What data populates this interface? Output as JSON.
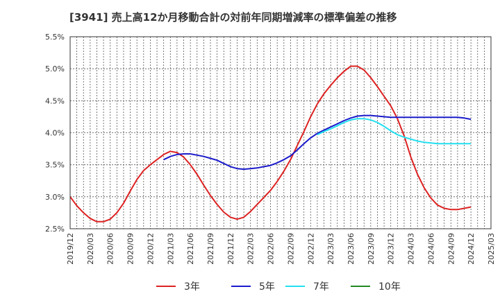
{
  "chart_data": {
    "type": "line",
    "title": "[3941]  売上高12か月移動合計の対前年同期増減率の標準偏差の推移",
    "xlabel": "",
    "ylabel": "",
    "ylim": [
      2.5,
      5.5
    ],
    "xlim": [
      "2019-12",
      "2025-03"
    ],
    "grid": true,
    "legend_position": "bottom",
    "y_ticks": [
      "2.5%",
      "3.0%",
      "3.5%",
      "4.0%",
      "4.5%",
      "5.0%",
      "5.5%"
    ],
    "x_ticks": [
      "2019/12",
      "2020/03",
      "2020/06",
      "2020/09",
      "2020/12",
      "2021/03",
      "2021/06",
      "2021/09",
      "2021/12",
      "2022/03",
      "2022/06",
      "2022/09",
      "2022/12",
      "2023/03",
      "2023/06",
      "2023/09",
      "2023/12",
      "2024/03",
      "2024/06",
      "2024/09",
      "2024/12",
      "2025/03"
    ],
    "series": [
      {
        "name": "3年",
        "color": "#dd2222",
        "points": [
          [
            "2019-12",
            3.0
          ],
          [
            "2020-01",
            2.86
          ],
          [
            "2020-02",
            2.75
          ],
          [
            "2020-03",
            2.66
          ],
          [
            "2020-04",
            2.61
          ],
          [
            "2020-05",
            2.61
          ],
          [
            "2020-06",
            2.65
          ],
          [
            "2020-07",
            2.75
          ],
          [
            "2020-08",
            2.9
          ],
          [
            "2020-09",
            3.09
          ],
          [
            "2020-10",
            3.27
          ],
          [
            "2020-11",
            3.41
          ],
          [
            "2020-12",
            3.5
          ],
          [
            "2021-01",
            3.58
          ],
          [
            "2021-02",
            3.66
          ],
          [
            "2021-03",
            3.71
          ],
          [
            "2021-04",
            3.69
          ],
          [
            "2021-05",
            3.62
          ],
          [
            "2021-06",
            3.5
          ],
          [
            "2021-07",
            3.35
          ],
          [
            "2021-08",
            3.18
          ],
          [
            "2021-09",
            3.02
          ],
          [
            "2021-10",
            2.88
          ],
          [
            "2021-11",
            2.76
          ],
          [
            "2021-12",
            2.68
          ],
          [
            "2022-01",
            2.65
          ],
          [
            "2022-02",
            2.68
          ],
          [
            "2022-03",
            2.77
          ],
          [
            "2022-04",
            2.88
          ],
          [
            "2022-05",
            2.99
          ],
          [
            "2022-06",
            3.1
          ],
          [
            "2022-07",
            3.24
          ],
          [
            "2022-08",
            3.4
          ],
          [
            "2022-09",
            3.58
          ],
          [
            "2022-10",
            3.8
          ],
          [
            "2022-11",
            4.02
          ],
          [
            "2022-12",
            4.25
          ],
          [
            "2023-01",
            4.45
          ],
          [
            "2023-02",
            4.61
          ],
          [
            "2023-03",
            4.74
          ],
          [
            "2023-04",
            4.86
          ],
          [
            "2023-05",
            4.96
          ],
          [
            "2023-06",
            5.04
          ],
          [
            "2023-07",
            5.04
          ],
          [
            "2023-08",
            4.98
          ],
          [
            "2023-09",
            4.86
          ],
          [
            "2023-10",
            4.72
          ],
          [
            "2023-11",
            4.57
          ],
          [
            "2023-12",
            4.42
          ],
          [
            "2024-01",
            4.22
          ],
          [
            "2024-02",
            3.95
          ],
          [
            "2024-03",
            3.62
          ],
          [
            "2024-04",
            3.35
          ],
          [
            "2024-05",
            3.14
          ],
          [
            "2024-06",
            2.98
          ],
          [
            "2024-07",
            2.87
          ],
          [
            "2024-08",
            2.82
          ],
          [
            "2024-09",
            2.8
          ],
          [
            "2024-10",
            2.8
          ],
          [
            "2024-11",
            2.82
          ],
          [
            "2024-12",
            2.84
          ]
        ]
      },
      {
        "name": "5年",
        "color": "#1a1acc",
        "points": [
          [
            "2021-02",
            3.58
          ],
          [
            "2021-03",
            3.63
          ],
          [
            "2021-04",
            3.66
          ],
          [
            "2021-05",
            3.67
          ],
          [
            "2021-06",
            3.67
          ],
          [
            "2021-07",
            3.65
          ],
          [
            "2021-08",
            3.63
          ],
          [
            "2021-09",
            3.6
          ],
          [
            "2021-10",
            3.57
          ],
          [
            "2021-11",
            3.52
          ],
          [
            "2021-12",
            3.47
          ],
          [
            "2022-01",
            3.44
          ],
          [
            "2022-02",
            3.43
          ],
          [
            "2022-03",
            3.44
          ],
          [
            "2022-04",
            3.45
          ],
          [
            "2022-05",
            3.47
          ],
          [
            "2022-06",
            3.49
          ],
          [
            "2022-07",
            3.53
          ],
          [
            "2022-08",
            3.58
          ],
          [
            "2022-09",
            3.64
          ],
          [
            "2022-10",
            3.73
          ],
          [
            "2022-11",
            3.83
          ],
          [
            "2022-12",
            3.92
          ],
          [
            "2023-01",
            3.99
          ],
          [
            "2023-02",
            4.04
          ],
          [
            "2023-03",
            4.09
          ],
          [
            "2023-04",
            4.14
          ],
          [
            "2023-05",
            4.19
          ],
          [
            "2023-06",
            4.23
          ],
          [
            "2023-07",
            4.26
          ],
          [
            "2023-08",
            4.27
          ],
          [
            "2023-09",
            4.27
          ],
          [
            "2023-10",
            4.26
          ],
          [
            "2023-11",
            4.25
          ],
          [
            "2023-12",
            4.24
          ],
          [
            "2024-01",
            4.24
          ],
          [
            "2024-02",
            4.24
          ],
          [
            "2024-03",
            4.24
          ],
          [
            "2024-04",
            4.24
          ],
          [
            "2024-05",
            4.24
          ],
          [
            "2024-06",
            4.24
          ],
          [
            "2024-07",
            4.24
          ],
          [
            "2024-08",
            4.24
          ],
          [
            "2024-09",
            4.24
          ],
          [
            "2024-10",
            4.24
          ],
          [
            "2024-11",
            4.23
          ],
          [
            "2024-12",
            4.21
          ]
        ]
      },
      {
        "name": "7年",
        "color": "#22e0f0",
        "points": [
          [
            "2023-01",
            3.97
          ],
          [
            "2023-02",
            4.02
          ],
          [
            "2023-03",
            4.06
          ],
          [
            "2023-04",
            4.11
          ],
          [
            "2023-05",
            4.16
          ],
          [
            "2023-06",
            4.2
          ],
          [
            "2023-07",
            4.22
          ],
          [
            "2023-08",
            4.22
          ],
          [
            "2023-09",
            4.2
          ],
          [
            "2023-10",
            4.16
          ],
          [
            "2023-11",
            4.1
          ],
          [
            "2023-12",
            4.03
          ],
          [
            "2024-01",
            3.97
          ],
          [
            "2024-02",
            3.93
          ],
          [
            "2024-03",
            3.9
          ],
          [
            "2024-04",
            3.87
          ],
          [
            "2024-05",
            3.85
          ],
          [
            "2024-06",
            3.84
          ],
          [
            "2024-07",
            3.83
          ],
          [
            "2024-08",
            3.83
          ],
          [
            "2024-09",
            3.83
          ],
          [
            "2024-10",
            3.83
          ],
          [
            "2024-11",
            3.83
          ],
          [
            "2024-12",
            3.83
          ]
        ]
      },
      {
        "name": "10年",
        "color": "#228822",
        "points": []
      }
    ]
  }
}
